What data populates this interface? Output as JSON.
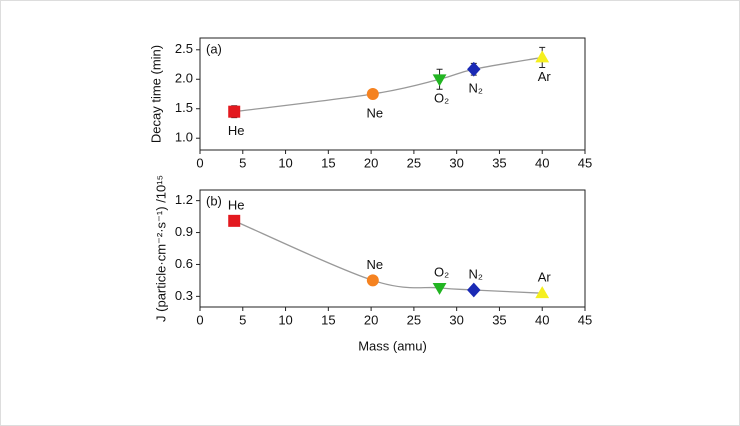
{
  "chart_data": [
    {
      "type": "scatter",
      "panel_label": "(a)",
      "y_label": "Decay time (min)",
      "x": [
        4,
        20.2,
        28,
        32,
        40
      ],
      "values": [
        1.45,
        1.75,
        2.0,
        2.17,
        2.37
      ],
      "errors": [
        0.1,
        0.06,
        0.17,
        0.1,
        0.17
      ],
      "point_labels": [
        "He",
        "Ne",
        "O₂",
        "N₂",
        "Ar"
      ],
      "label_position": "below",
      "markers": [
        "square",
        "circle",
        "triangle-down",
        "diamond",
        "triangle-up"
      ],
      "colors": [
        "#e3191f",
        "#f58220",
        "#22b522",
        "#1a2ab5",
        "#f5ef1f"
      ],
      "line_color": "#999999",
      "line_style": "smooth",
      "xlim": [
        0,
        45
      ],
      "xticks": [
        0,
        5,
        10,
        15,
        20,
        25,
        30,
        35,
        40,
        45
      ],
      "ylim": [
        0.8,
        2.7
      ],
      "yticks": [
        {
          "value": 1.0,
          "label": "1.0"
        },
        1.5,
        {
          "value": 2.0,
          "label": "2.0"
        },
        2.5
      ]
    },
    {
      "type": "scatter",
      "panel_label": "(b)",
      "y_label": "J (particle·cm⁻²·s⁻¹) /10¹⁵",
      "x_label": "Mass (amu)",
      "x": [
        4,
        20.2,
        28,
        32,
        40
      ],
      "values": [
        1.01,
        0.45,
        0.38,
        0.36,
        0.33
      ],
      "point_labels": [
        "He",
        "Ne",
        "O₂",
        "N₂",
        "Ar"
      ],
      "label_position": "above",
      "markers": [
        "square",
        "circle",
        "triangle-down",
        "diamond",
        "triangle-up"
      ],
      "colors": [
        "#e3191f",
        "#f58220",
        "#22b522",
        "#1a2ab5",
        "#f5ef1f"
      ],
      "line_color": "#999999",
      "line_style": "smooth",
      "xlim": [
        0,
        45
      ],
      "xticks": [
        0,
        5,
        10,
        15,
        20,
        25,
        30,
        35,
        40,
        45
      ],
      "ylim": [
        0.2,
        1.3
      ],
      "yticks": [
        0.3,
        0.6,
        0.9,
        1.2
      ]
    }
  ]
}
